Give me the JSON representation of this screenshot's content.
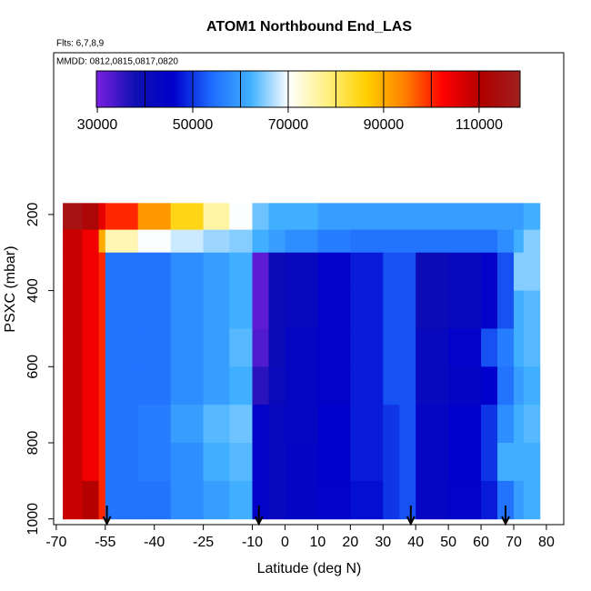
{
  "chart_data": {
    "type": "heatmap",
    "title": "ATOM1 Northbound End_LAS",
    "subtitle": "Flts: 6,7,8,9",
    "annotation": "MMDD: 0812,0815,0817,0820",
    "x_label": "Latitude (deg N)",
    "y_label": "PSXC (mbar)",
    "xlim": [
      -70.8,
      85.3
    ],
    "xticks": [
      -70,
      -55,
      -40,
      -25,
      -10,
      0,
      10,
      20,
      30,
      40,
      50,
      60,
      70,
      80
    ],
    "ylim": [
      1015,
      -225
    ],
    "yticks": [
      200,
      400,
      600,
      800,
      1000
    ],
    "x_edges": [
      -68,
      -62,
      -57,
      -55,
      -45,
      -35,
      -25,
      -17,
      -10,
      -5,
      0,
      10,
      20,
      30,
      35,
      40,
      50,
      60,
      65,
      70,
      73,
      78
    ],
    "y_edges": [
      170,
      240,
      300,
      400,
      500,
      600,
      700,
      800,
      900,
      1000
    ],
    "z": [
      [
        115000,
        112000,
        105000,
        100000,
        92000,
        85000,
        76000,
        70000,
        64000,
        62000,
        62000,
        60000,
        60000,
        60000,
        60000,
        60000,
        60000,
        60000,
        60000,
        60000,
        62000
      ],
      [
        108000,
        104000,
        90000,
        75000,
        70000,
        68000,
        66000,
        65000,
        62000,
        60000,
        58000,
        56000,
        55000,
        55000,
        55000,
        55000,
        55000,
        55000,
        58000,
        62000,
        65000
      ],
      [
        108000,
        104000,
        100000,
        55000,
        55000,
        58000,
        60000,
        62000,
        32000,
        40000,
        42000,
        45000,
        48000,
        52000,
        52000,
        40000,
        42000,
        45000,
        52000,
        65000,
        65000
      ],
      [
        108000,
        104000,
        100000,
        55000,
        55000,
        58000,
        60000,
        62000,
        32000,
        40000,
        42000,
        45000,
        48000,
        52000,
        52000,
        40000,
        42000,
        45000,
        52000,
        62000,
        63000
      ],
      [
        108000,
        104000,
        100000,
        55000,
        55000,
        58000,
        60000,
        63000,
        33000,
        40000,
        43000,
        45000,
        48000,
        52000,
        52000,
        42000,
        45000,
        52000,
        56000,
        62000,
        63000
      ],
      [
        108000,
        104000,
        100000,
        55000,
        55000,
        58000,
        60000,
        62000,
        36000,
        41000,
        43000,
        45000,
        48000,
        52000,
        52000,
        42000,
        44000,
        46000,
        55000,
        60000,
        62000
      ],
      [
        108000,
        104000,
        100000,
        55000,
        56000,
        60000,
        63000,
        64000,
        45000,
        42000,
        43000,
        46000,
        48000,
        50000,
        52000,
        43000,
        46000,
        50000,
        58000,
        62000,
        63000
      ],
      [
        108000,
        104000,
        100000,
        55000,
        56000,
        58000,
        62000,
        63000,
        45000,
        42000,
        44000,
        46000,
        48000,
        50000,
        52000,
        43000,
        46000,
        50000,
        62000,
        62000,
        62000
      ],
      [
        108000,
        110000,
        100000,
        55000,
        55000,
        58000,
        60000,
        62000,
        45000,
        42000,
        44000,
        45000,
        47000,
        50000,
        52000,
        43000,
        45000,
        48000,
        55000,
        60000,
        62000
      ]
    ],
    "colormap": [
      "#7a20e0",
      "#1010b0",
      "#0000cc",
      "#1e6cff",
      "#40b0ff",
      "#ffffff",
      "#fff080",
      "#ffd000",
      "#ff8000",
      "#ff0000",
      "#b00000",
      "#a02020"
    ],
    "colorbar": {
      "lim": [
        29800,
        118600
      ],
      "ticks": [
        30000,
        50000,
        70000,
        90000,
        110000
      ],
      "divisions": [
        40000,
        50000,
        60000,
        70000,
        80000,
        90000,
        100000,
        110000
      ]
    },
    "arrows": [
      -54.5,
      -8,
      38.5,
      67.5
    ]
  }
}
